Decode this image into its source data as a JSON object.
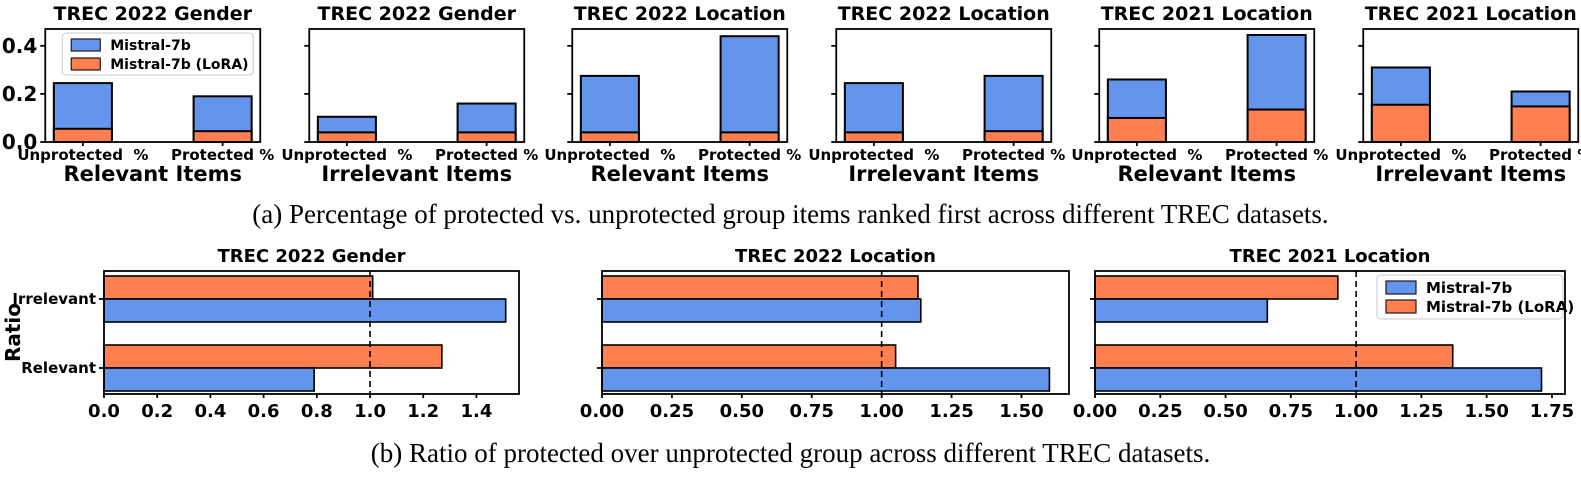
{
  "captions": {
    "a": "(a) Percentage of protected vs. unprotected group items ranked first across different TREC datasets.",
    "b": "(b) Ratio of protected over unprotected group across different TREC datasets."
  },
  "colors": {
    "blue": "#6495ED",
    "orange": "#FF7F50",
    "bar_edge": "#000000",
    "legend_border": "#c8c8c8"
  },
  "legend_labels": {
    "base": "Mistral-7b",
    "lora": "Mistral-7b (LoRA)"
  },
  "chart_data": [
    {
      "id": "a1",
      "panel": "a",
      "type": "bar",
      "title": "TREC 2022 Gender",
      "xlabel": "Relevant Items",
      "categories": [
        "Unprotected  %",
        "Protected %"
      ],
      "series": [
        {
          "name": "Mistral-7b",
          "color": "blue",
          "values": [
            0.245,
            0.19
          ]
        },
        {
          "name": "Mistral-7b (LoRA)",
          "color": "orange",
          "values": [
            0.055,
            0.045
          ]
        }
      ],
      "ylim": [
        0,
        0.47
      ],
      "yticks": [
        0.0,
        0.2,
        0.4
      ],
      "tick_decimals": 1,
      "show_value_axis_labels": true,
      "show_legend": true,
      "legend_position": "upper-left",
      "grid": false
    },
    {
      "id": "a2",
      "panel": "a",
      "type": "bar",
      "title": "TREC 2022 Gender",
      "xlabel": "Irrelevant Items",
      "categories": [
        "Unprotected  %",
        "Protected %"
      ],
      "series": [
        {
          "name": "Mistral-7b",
          "color": "blue",
          "values": [
            0.105,
            0.16
          ]
        },
        {
          "name": "Mistral-7b (LoRA)",
          "color": "orange",
          "values": [
            0.04,
            0.04
          ]
        }
      ],
      "ylim": [
        0,
        0.47
      ],
      "yticks": [
        0.0,
        0.2,
        0.4
      ],
      "tick_decimals": 1,
      "show_value_axis_labels": false,
      "show_legend": false,
      "grid": false
    },
    {
      "id": "a3",
      "panel": "a",
      "type": "bar",
      "title": "TREC 2022 Location",
      "xlabel": "Relevant Items",
      "categories": [
        "Unprotected  %",
        "Protected %"
      ],
      "series": [
        {
          "name": "Mistral-7b",
          "color": "blue",
          "values": [
            0.275,
            0.44
          ]
        },
        {
          "name": "Mistral-7b (LoRA)",
          "color": "orange",
          "values": [
            0.04,
            0.04
          ]
        }
      ],
      "ylim": [
        0,
        0.47
      ],
      "yticks": [
        0.0,
        0.2,
        0.4
      ],
      "tick_decimals": 1,
      "show_value_axis_labels": false,
      "show_legend": false,
      "grid": false
    },
    {
      "id": "a4",
      "panel": "a",
      "type": "bar",
      "title": "TREC 2022 Location",
      "xlabel": "Irrelevant Items",
      "categories": [
        "Unprotected  %",
        "Protected %"
      ],
      "series": [
        {
          "name": "Mistral-7b",
          "color": "blue",
          "values": [
            0.245,
            0.275
          ]
        },
        {
          "name": "Mistral-7b (LoRA)",
          "color": "orange",
          "values": [
            0.04,
            0.045
          ]
        }
      ],
      "ylim": [
        0,
        0.47
      ],
      "yticks": [
        0.0,
        0.2,
        0.4
      ],
      "tick_decimals": 1,
      "show_value_axis_labels": false,
      "show_legend": false,
      "grid": false
    },
    {
      "id": "a5",
      "panel": "a",
      "type": "bar",
      "title": "TREC 2021 Location",
      "xlabel": "Relevant Items",
      "categories": [
        "Unprotected  %",
        "Protected %"
      ],
      "series": [
        {
          "name": "Mistral-7b",
          "color": "blue",
          "values": [
            0.26,
            0.445
          ]
        },
        {
          "name": "Mistral-7b (LoRA)",
          "color": "orange",
          "values": [
            0.1,
            0.135
          ]
        }
      ],
      "ylim": [
        0,
        0.47
      ],
      "yticks": [
        0.0,
        0.2,
        0.4
      ],
      "tick_decimals": 1,
      "show_value_axis_labels": false,
      "show_legend": false,
      "grid": false
    },
    {
      "id": "a6",
      "panel": "a",
      "type": "bar",
      "title": "TREC 2021 Location",
      "xlabel": "Irrelevant Items",
      "categories": [
        "Unprotected  %",
        "Protected %"
      ],
      "series": [
        {
          "name": "Mistral-7b",
          "color": "blue",
          "values": [
            0.31,
            0.21
          ]
        },
        {
          "name": "Mistral-7b (LoRA)",
          "color": "orange",
          "values": [
            0.155,
            0.148
          ]
        }
      ],
      "ylim": [
        0,
        0.47
      ],
      "yticks": [
        0.0,
        0.2,
        0.4
      ],
      "tick_decimals": 1,
      "show_value_axis_labels": false,
      "show_legend": false,
      "grid": false
    },
    {
      "id": "b1",
      "panel": "b",
      "type": "bar-horizontal",
      "title": "TREC 2022 Gender",
      "ylabel": "Ratio",
      "categories": [
        "Irrelevant",
        "Relevant"
      ],
      "series": [
        {
          "name": "Mistral-7b",
          "color": "blue",
          "values": [
            1.51,
            0.79
          ]
        },
        {
          "name": "Mistral-7b (LoRA)",
          "color": "orange",
          "values": [
            1.01,
            1.27
          ]
        }
      ],
      "xlim": [
        0,
        1.56
      ],
      "xticks": [
        0.0,
        0.2,
        0.4,
        0.6,
        0.8,
        1.0,
        1.2,
        1.4
      ],
      "tick_decimals": 1,
      "refline": 1.0,
      "show_category_labels": true,
      "show_legend": false,
      "grid": false
    },
    {
      "id": "b2",
      "panel": "b",
      "type": "bar-horizontal",
      "title": "TREC 2022 Location",
      "ylabel": "",
      "categories": [
        "Irrelevant",
        "Relevant"
      ],
      "series": [
        {
          "name": "Mistral-7b",
          "color": "blue",
          "values": [
            1.14,
            1.6
          ]
        },
        {
          "name": "Mistral-7b (LoRA)",
          "color": "orange",
          "values": [
            1.13,
            1.05
          ]
        }
      ],
      "xlim": [
        0,
        1.67
      ],
      "xticks": [
        0.0,
        0.25,
        0.5,
        0.75,
        1.0,
        1.25,
        1.5
      ],
      "tick_decimals": 2,
      "refline": 1.0,
      "show_category_labels": false,
      "show_legend": false,
      "grid": false
    },
    {
      "id": "b3",
      "panel": "b",
      "type": "bar-horizontal",
      "title": "TREC 2021 Location",
      "ylabel": "",
      "categories": [
        "Irrelevant",
        "Relevant"
      ],
      "series": [
        {
          "name": "Mistral-7b",
          "color": "blue",
          "values": [
            0.66,
            1.71
          ]
        },
        {
          "name": "Mistral-7b (LoRA)",
          "color": "orange",
          "values": [
            0.93,
            1.37
          ]
        }
      ],
      "xlim": [
        0,
        1.8
      ],
      "xticks": [
        0.0,
        0.25,
        0.5,
        0.75,
        1.0,
        1.25,
        1.5,
        1.75
      ],
      "tick_decimals": 2,
      "refline": 1.0,
      "show_category_labels": false,
      "show_legend": true,
      "legend_position": "upper-right",
      "grid": false
    }
  ]
}
